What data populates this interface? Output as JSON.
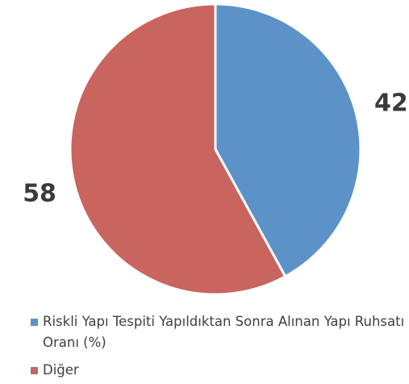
{
  "chart_data": {
    "type": "pie",
    "categories": [
      "Riskli Yapı Tespiti Yapıldıktan Sonra Alınan Yapı Ruhsatı Oranı (%)",
      "Diğer"
    ],
    "values": [
      42,
      58
    ],
    "colors": [
      "#5b93c9",
      "#c9645f"
    ]
  }
}
